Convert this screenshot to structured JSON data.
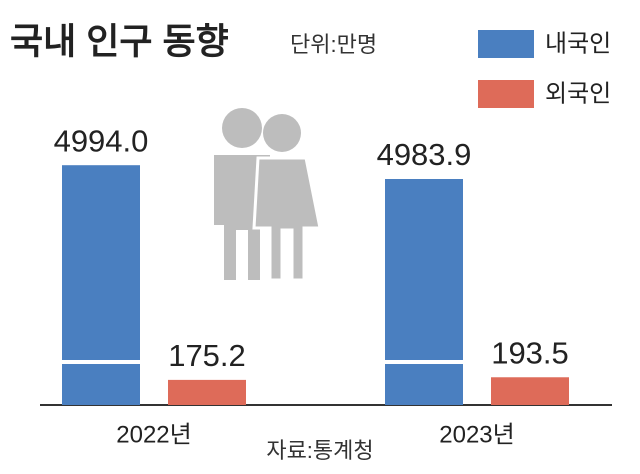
{
  "chart_data": {
    "type": "bar",
    "title": "국내 인구 동향",
    "subtitle": "단위:만명",
    "source": "자료:통계청",
    "categories": [
      "2022년",
      "2023년"
    ],
    "series": [
      {
        "name": "내국인",
        "color": "#4a7fc0",
        "values": [
          4994.0,
          4983.9
        ],
        "value_labels": [
          "4994.0",
          "4983.9"
        ]
      },
      {
        "name": "외국인",
        "color": "#de6b59",
        "values": [
          175.2,
          193.5
        ]
      }
    ],
    "ylim": [
      0,
      5000
    ],
    "axis_break": [
      300,
      4850
    ],
    "legend": "upper right"
  }
}
